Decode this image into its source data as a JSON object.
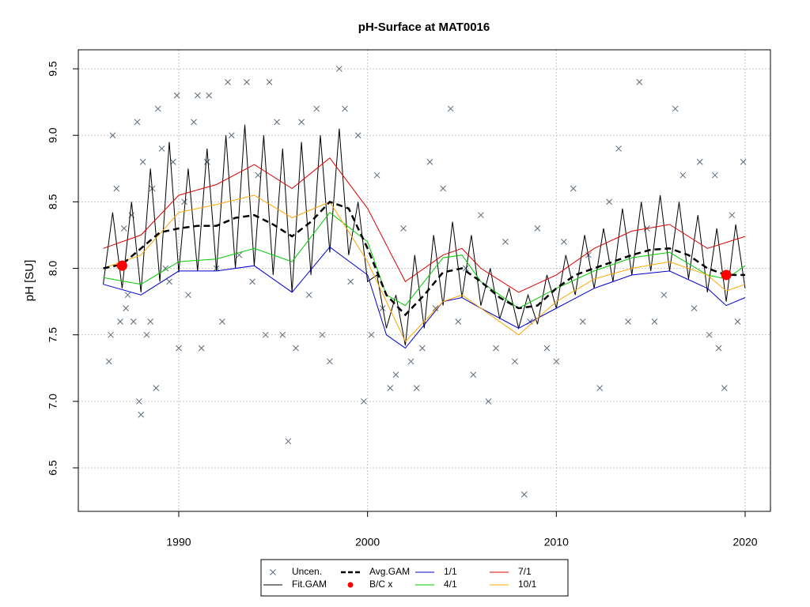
{
  "chart_data": {
    "type": "line",
    "title": "pH-Surface at MAT0016",
    "ylabel": "pH [SU]",
    "xlim": [
      1984.68,
      2021.34
    ],
    "ylim": [
      6.173,
      9.643
    ],
    "xticks": [
      1990,
      2000,
      2010,
      2020
    ],
    "yticks": [
      6.5,
      {
        "value": 7,
        "label": "7.0"
      },
      7.5,
      {
        "value": 8,
        "label": "8.0"
      },
      8.5,
      {
        "value": 9,
        "label": "9.0"
      },
      9.5
    ],
    "grid": true,
    "legend": "bottom",
    "series": [
      {
        "name": "Uncen.",
        "color": "#5a6a7a",
        "mark": "x",
        "x": [
          1986.3,
          1986.4,
          1986.5,
          1986.7,
          1986.9,
          1987.1,
          1987.2,
          1987.3,
          1987.5,
          1987.6,
          1987.8,
          1987.9,
          1988.0,
          1988.1,
          1988.3,
          1988.5,
          1988.6,
          1988.8,
          1988.9,
          1989.1,
          1989.3,
          1989.5,
          1989.7,
          1989.9,
          1990.0,
          1990.3,
          1990.5,
          1990.8,
          1991.0,
          1991.2,
          1991.5,
          1991.6,
          1992.0,
          1992.3,
          1992.6,
          1992.8,
          1993.2,
          1993.6,
          1993.9,
          1994.2,
          1994.6,
          1994.8,
          1995.2,
          1995.5,
          1995.8,
          1996.2,
          1996.5,
          1996.9,
          1997.3,
          1997.6,
          1998.0,
          1998.5,
          1998.8,
          1999.1,
          1999.5,
          1999.8,
          2000.2,
          2000.5,
          2000.8,
          2001.2,
          2001.5,
          2001.9,
          2002.3,
          2002.6,
          2002.9,
          2003.3,
          2003.6,
          2004.0,
          2004.4,
          2004.8,
          2005.2,
          2005.6,
          2006.0,
          2006.4,
          2006.8,
          2007.3,
          2007.8,
          2008.3,
          2008.6,
          2009.0,
          2009.5,
          2010.0,
          2010.4,
          2010.9,
          2011.4,
          2011.7,
          2012.3,
          2012.8,
          2013.3,
          2013.8,
          2014.4,
          2014.8,
          2015.2,
          2015.7,
          2016.3,
          2016.7,
          2017.3,
          2017.6,
          2018.1,
          2018.4,
          2018.6,
          2018.9,
          2019.3,
          2019.6,
          2019.9
        ],
        "values": [
          7.3,
          7.5,
          9.0,
          8.6,
          7.6,
          8.3,
          7.7,
          7.8,
          8.4,
          7.6,
          9.1,
          7.0,
          6.9,
          8.8,
          7.5,
          7.6,
          8.6,
          7.1,
          9.2,
          8.9,
          8.0,
          7.9,
          8.8,
          9.3,
          7.4,
          8.5,
          7.8,
          9.1,
          9.3,
          7.4,
          8.8,
          9.3,
          8.0,
          7.6,
          9.4,
          9.0,
          8.1,
          9.4,
          7.9,
          8.7,
          7.5,
          9.4,
          9.1,
          7.5,
          6.7,
          7.4,
          9.1,
          7.8,
          9.2,
          7.5,
          7.3,
          9.5,
          9.2,
          7.9,
          9.0,
          7.0,
          7.5,
          8.7,
          7.7,
          7.1,
          7.2,
          8.3,
          7.3,
          7.1,
          7.4,
          8.8,
          7.7,
          8.6,
          9.2,
          7.6,
          8.0,
          7.2,
          8.4,
          7.0,
          7.4,
          8.2,
          7.3,
          6.3,
          7.6,
          8.3,
          7.4,
          7.3,
          8.2,
          8.6,
          7.6,
          8.1,
          7.1,
          8.5,
          8.9,
          7.6,
          9.4,
          8.3,
          7.6,
          7.8,
          9.2,
          8.7,
          7.7,
          8.8,
          7.5,
          8.7,
          7.4,
          7.1,
          8.4,
          7.6,
          8.8
        ]
      },
      {
        "name": "Fit.GAM",
        "color": "#000000",
        "mark": "line",
        "x": [
          1986,
          1986.5,
          1987,
          1987.5,
          1988,
          1988.5,
          1989,
          1989.5,
          1990,
          1990.5,
          1991,
          1991.5,
          1992,
          1992.5,
          1993,
          1993.5,
          1994,
          1994.5,
          1995,
          1995.5,
          1996,
          1996.5,
          1997,
          1997.5,
          1998,
          1998.5,
          1999,
          1999.5,
          2000,
          2000.5,
          2001,
          2001.5,
          2002,
          2002.5,
          2003,
          2003.5,
          2004,
          2004.5,
          2005,
          2005.5,
          2006,
          2006.5,
          2007,
          2007.5,
          2008,
          2008.5,
          2009,
          2009.5,
          2010,
          2010.5,
          2011,
          2011.5,
          2012,
          2012.5,
          2013,
          2013.5,
          2014,
          2014.5,
          2015,
          2015.5,
          2016,
          2016.5,
          2017,
          2017.5,
          2018,
          2018.5,
          2019,
          2019.5,
          2020
        ],
        "values": [
          7.88,
          8.42,
          7.85,
          8.5,
          7.82,
          8.75,
          7.9,
          8.95,
          7.97,
          8.75,
          7.98,
          8.9,
          7.98,
          9.0,
          8.0,
          9.08,
          8.02,
          9.0,
          7.95,
          8.9,
          7.82,
          8.95,
          7.95,
          9.0,
          8.12,
          9.05,
          8.1,
          8.5,
          7.9,
          7.95,
          7.55,
          7.8,
          7.42,
          8.1,
          7.55,
          8.25,
          7.72,
          8.35,
          7.78,
          8.25,
          7.72,
          8.0,
          7.62,
          7.85,
          7.55,
          7.8,
          7.58,
          7.95,
          7.7,
          8.1,
          7.8,
          8.25,
          7.85,
          8.3,
          7.9,
          8.45,
          7.95,
          8.5,
          7.98,
          8.55,
          7.98,
          8.5,
          7.92,
          8.4,
          7.82,
          8.3,
          7.75,
          8.33,
          7.85
        ]
      },
      {
        "name": "Avg.GAM",
        "color": "#000000",
        "mark": "dashed",
        "x": [
          1986,
          1987,
          1988,
          1989,
          1990,
          1991,
          1992,
          1993,
          1994,
          1995,
          1996,
          1997,
          1998,
          1999,
          2000,
          2001,
          2002,
          2003,
          2004,
          2005,
          2006,
          2007,
          2008,
          2009,
          2010,
          2011,
          2012,
          2013,
          2014,
          2015,
          2016,
          2017,
          2018,
          2019,
          2020
        ],
        "values": [
          8.0,
          8.03,
          8.15,
          8.27,
          8.3,
          8.32,
          8.32,
          8.38,
          8.4,
          8.33,
          8.24,
          8.35,
          8.5,
          8.45,
          8.15,
          7.8,
          7.65,
          7.8,
          7.97,
          8.0,
          7.9,
          7.78,
          7.7,
          7.72,
          7.85,
          7.95,
          8.0,
          8.05,
          8.1,
          8.14,
          8.15,
          8.1,
          8.0,
          7.95,
          7.95
        ]
      },
      {
        "name": "B/C x",
        "color": "#ff0000",
        "mark": "dot",
        "x": [
          1987.0,
          2019.0
        ],
        "values": [
          8.02,
          7.95
        ]
      },
      {
        "name": "1/1",
        "color": "#0000cc",
        "mark": "line",
        "x": [
          1986,
          1988,
          1990,
          1992,
          1994,
          1996,
          1998,
          2000,
          2001,
          2002,
          2004,
          2005,
          2006,
          2008,
          2010,
          2012,
          2014,
          2016,
          2018,
          2019,
          2020
        ],
        "values": [
          7.88,
          7.8,
          7.98,
          7.98,
          8.02,
          7.82,
          8.16,
          7.95,
          7.5,
          7.4,
          7.75,
          7.78,
          7.7,
          7.55,
          7.7,
          7.85,
          7.95,
          7.98,
          7.85,
          7.72,
          7.78
        ]
      },
      {
        "name": "4/1",
        "color": "#00cc00",
        "mark": "line",
        "x": [
          1986,
          1988,
          1990,
          1992,
          1994,
          1996,
          1998,
          2000,
          2001,
          2002,
          2004,
          2005,
          2006,
          2008,
          2010,
          2012,
          2014,
          2016,
          2018,
          2019,
          2020
        ],
        "values": [
          7.93,
          7.88,
          8.05,
          8.07,
          8.15,
          8.05,
          8.42,
          8.2,
          7.8,
          7.72,
          8.08,
          8.1,
          7.9,
          7.7,
          7.85,
          7.98,
          8.08,
          8.12,
          7.95,
          7.92,
          8.02
        ]
      },
      {
        "name": "7/1",
        "color": "#dd0000",
        "mark": "line",
        "x": [
          1986,
          1988,
          1990,
          1992,
          1994,
          1996,
          1998,
          2000,
          2002,
          2004,
          2005,
          2006,
          2008,
          2010,
          2012,
          2014,
          2016,
          2018,
          2020
        ],
        "values": [
          8.15,
          8.25,
          8.55,
          8.63,
          8.78,
          8.6,
          8.83,
          8.45,
          7.9,
          8.1,
          8.15,
          8.0,
          7.82,
          7.95,
          8.15,
          8.28,
          8.33,
          8.15,
          8.24
        ]
      },
      {
        "name": "10/1",
        "color": "#ffa500",
        "mark": "line",
        "x": [
          1986,
          1988,
          1990,
          1992,
          1994,
          1996,
          1998,
          2000,
          2002,
          2004,
          2005,
          2006,
          2008,
          2010,
          2012,
          2014,
          2016,
          2018,
          2019,
          2020
        ],
        "values": [
          8.0,
          8.1,
          8.42,
          8.48,
          8.55,
          8.38,
          8.5,
          8.05,
          7.45,
          7.75,
          7.8,
          7.7,
          7.5,
          7.75,
          7.92,
          8.0,
          8.05,
          7.95,
          7.83,
          7.88
        ]
      }
    ]
  }
}
